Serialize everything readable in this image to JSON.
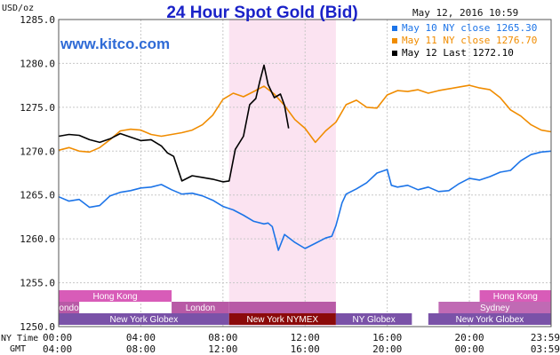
{
  "chart_data": {
    "type": "line",
    "title": "24 Hour Spot Gold (Bid)",
    "site": "www.kitco.com",
    "timestamp": "May 12, 2016 10:59",
    "ylabel": "USD/oz",
    "ylim": [
      1250,
      1285
    ],
    "yticks": [
      "1285.0",
      "1280.0",
      "1275.0",
      "1270.0",
      "1265.0",
      "1260.0",
      "1255.0",
      "1250.0"
    ],
    "row_label_ny": "NY Time",
    "row_label_gmt": "GMT",
    "x_ny_ticks": [
      "00:00",
      "04:00",
      "08:00",
      "12:00",
      "16:00",
      "20:00",
      "23:59"
    ],
    "x_gmt_ticks": [
      "04:00",
      "08:00",
      "12:00",
      "16:00",
      "20:00",
      "00:00",
      "03:59"
    ],
    "x_hours": [
      0,
      4,
      8,
      12,
      16,
      20,
      23.98
    ],
    "highlight_hours": [
      8.3,
      13.5
    ],
    "highlight_color": "#fbe3f1",
    "markets": [
      {
        "row": 0,
        "label": "Hong Kong",
        "start": 0,
        "end": 5.5,
        "color": "#d85cb8"
      },
      {
        "row": 0,
        "label": "Hong Kong",
        "start": 20.5,
        "end": 23.98,
        "color": "#d85cb8"
      },
      {
        "row": 1,
        "label": "London",
        "start": 0,
        "end": 1,
        "color": "#b85aa6"
      },
      {
        "row": 1,
        "label": "London",
        "start": 5.5,
        "end": 8.3,
        "color": "#b85aa6"
      },
      {
        "row": 1,
        "label": "",
        "start": 8.3,
        "end": 13.5,
        "color": "#b85aa6"
      },
      {
        "row": 1,
        "label": "Sydney",
        "start": 18.5,
        "end": 23.98,
        "color": "#c06ab4"
      },
      {
        "row": 2,
        "label": "New York Globex",
        "start": 0,
        "end": 8.3,
        "color": "#7a52a8"
      },
      {
        "row": 2,
        "label": "New York NYMEX",
        "start": 8.3,
        "end": 13.5,
        "color": "#8b0a0a"
      },
      {
        "row": 2,
        "label": "NY Globex",
        "start": 13.5,
        "end": 17.2,
        "color": "#7a52a8"
      },
      {
        "row": 2,
        "label": "New York Globex",
        "start": 18,
        "end": 23.98,
        "color": "#7a52a8"
      }
    ],
    "series": [
      {
        "name": "May 10 NY close 1265.30",
        "color": "#1c74e8",
        "x": [
          0,
          0.5,
          1,
          1.5,
          2,
          2.5,
          3,
          3.5,
          4,
          4.5,
          5,
          5.5,
          6,
          6.5,
          7,
          7.5,
          8,
          8.5,
          9,
          9.5,
          10,
          10.2,
          10.4,
          10.7,
          11,
          11.5,
          12,
          12.5,
          13,
          13.3,
          13.5,
          13.8,
          14,
          14.5,
          15,
          15.5,
          16,
          16.2,
          16.5,
          17,
          17.5,
          18,
          18.5,
          19,
          19.5,
          20,
          20.5,
          21,
          21.5,
          22,
          22.5,
          23,
          23.5,
          23.98
        ],
        "y": [
          1264.8,
          1264.3,
          1264.5,
          1263.6,
          1263.8,
          1264.9,
          1265.3,
          1265.5,
          1265.8,
          1265.9,
          1266.2,
          1265.6,
          1265.1,
          1265.2,
          1264.9,
          1264.4,
          1263.7,
          1263.3,
          1262.7,
          1262.0,
          1261.7,
          1261.8,
          1261.4,
          1258.7,
          1260.5,
          1259.6,
          1258.9,
          1259.5,
          1260.1,
          1260.3,
          1261.5,
          1264.1,
          1265.1,
          1265.7,
          1266.4,
          1267.5,
          1267.9,
          1266.1,
          1265.9,
          1266.1,
          1265.6,
          1265.9,
          1265.4,
          1265.5,
          1266.3,
          1266.9,
          1266.7,
          1267.1,
          1267.6,
          1267.8,
          1268.9,
          1269.6,
          1269.9,
          1270.0
        ]
      },
      {
        "name": "May 11 NY close 1276.70",
        "color": "#f08c00",
        "x": [
          0,
          0.5,
          1,
          1.5,
          2,
          2.5,
          3,
          3.5,
          4,
          4.5,
          5,
          5.5,
          6,
          6.5,
          7,
          7.5,
          8,
          8.5,
          9,
          9.5,
          10,
          10.5,
          11,
          11.5,
          12,
          12.5,
          13,
          13.5,
          14,
          14.5,
          15,
          15.5,
          16,
          16.5,
          17,
          17.5,
          18,
          18.5,
          19,
          19.5,
          20,
          20.5,
          21,
          21.5,
          22,
          22.5,
          23,
          23.5,
          23.98
        ],
        "y": [
          1270.1,
          1270.4,
          1270.0,
          1269.9,
          1270.4,
          1271.3,
          1272.3,
          1272.5,
          1272.4,
          1271.9,
          1271.7,
          1271.9,
          1272.1,
          1272.4,
          1273.0,
          1274.1,
          1275.9,
          1276.6,
          1276.2,
          1276.8,
          1277.4,
          1276.5,
          1275.2,
          1273.6,
          1272.6,
          1271.0,
          1272.3,
          1273.3,
          1275.3,
          1275.8,
          1275.0,
          1274.9,
          1276.4,
          1276.9,
          1276.8,
          1277.0,
          1276.6,
          1276.9,
          1277.1,
          1277.3,
          1277.5,
          1277.2,
          1277.0,
          1276.1,
          1274.7,
          1274.0,
          1273.0,
          1272.4,
          1272.2
        ]
      },
      {
        "name": "May 12 Last 1272.10",
        "color": "#000000",
        "x": [
          0,
          0.5,
          1,
          1.5,
          2,
          2.5,
          3,
          3.5,
          4,
          4.5,
          5,
          5.3,
          5.6,
          6,
          6.5,
          7,
          7.5,
          8,
          8.3,
          8.6,
          9,
          9.3,
          9.6,
          9.8,
          10,
          10.2,
          10.5,
          10.8,
          11,
          11.2
        ],
        "y": [
          1271.7,
          1271.9,
          1271.8,
          1271.3,
          1271.0,
          1271.4,
          1272.0,
          1271.6,
          1271.2,
          1271.3,
          1270.6,
          1269.8,
          1269.4,
          1266.6,
          1267.2,
          1267.0,
          1266.8,
          1266.5,
          1266.6,
          1270.2,
          1271.7,
          1275.3,
          1276.0,
          1278.0,
          1279.8,
          1277.6,
          1276.1,
          1276.5,
          1275.2,
          1272.6
        ]
      }
    ]
  }
}
